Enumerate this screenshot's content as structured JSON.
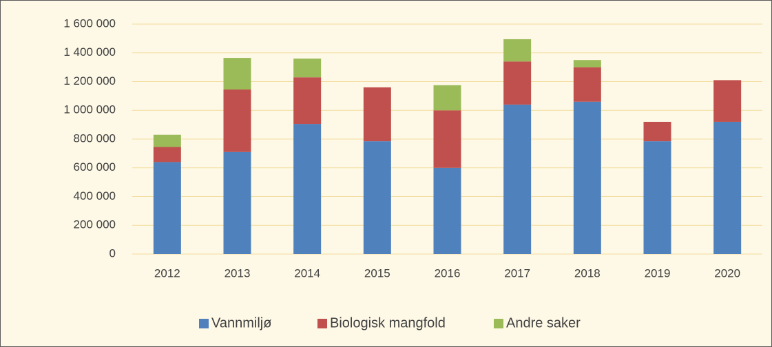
{
  "chart_data": {
    "type": "bar",
    "stacked": true,
    "categories": [
      "2012",
      "2013",
      "2014",
      "2015",
      "2016",
      "2017",
      "2018",
      "2019",
      "2020"
    ],
    "series": [
      {
        "name": "Vannmiljø",
        "color": "#4f81bd",
        "values": [
          640000,
          710000,
          905000,
          785000,
          600000,
          1040000,
          1060000,
          785000,
          920000
        ]
      },
      {
        "name": "Biologisk mangfold",
        "color": "#c0504d",
        "values": [
          105000,
          435000,
          325000,
          375000,
          400000,
          300000,
          240000,
          135000,
          290000
        ]
      },
      {
        "name": "Andre saker",
        "color": "#9bbb59",
        "values": [
          85000,
          220000,
          130000,
          null,
          175000,
          155000,
          50000,
          null,
          null
        ]
      }
    ],
    "ylim": [
      0,
      1600000
    ],
    "yticks": [
      0,
      {
        "value": 200000,
        "label": "200 000"
      },
      {
        "value": 400000,
        "label": "400 000"
      },
      {
        "value": 600000,
        "label": "600 000"
      },
      {
        "value": 800000,
        "label": "800 000"
      },
      {
        "value": 1000000,
        "label": "1 000 000"
      },
      {
        "value": 1200000,
        "label": "1 200 000"
      },
      {
        "value": 1400000,
        "label": "1 400 000"
      },
      {
        "value": 1600000,
        "label": "1 600 000"
      }
    ],
    "grid": true,
    "legend": "bottom"
  }
}
